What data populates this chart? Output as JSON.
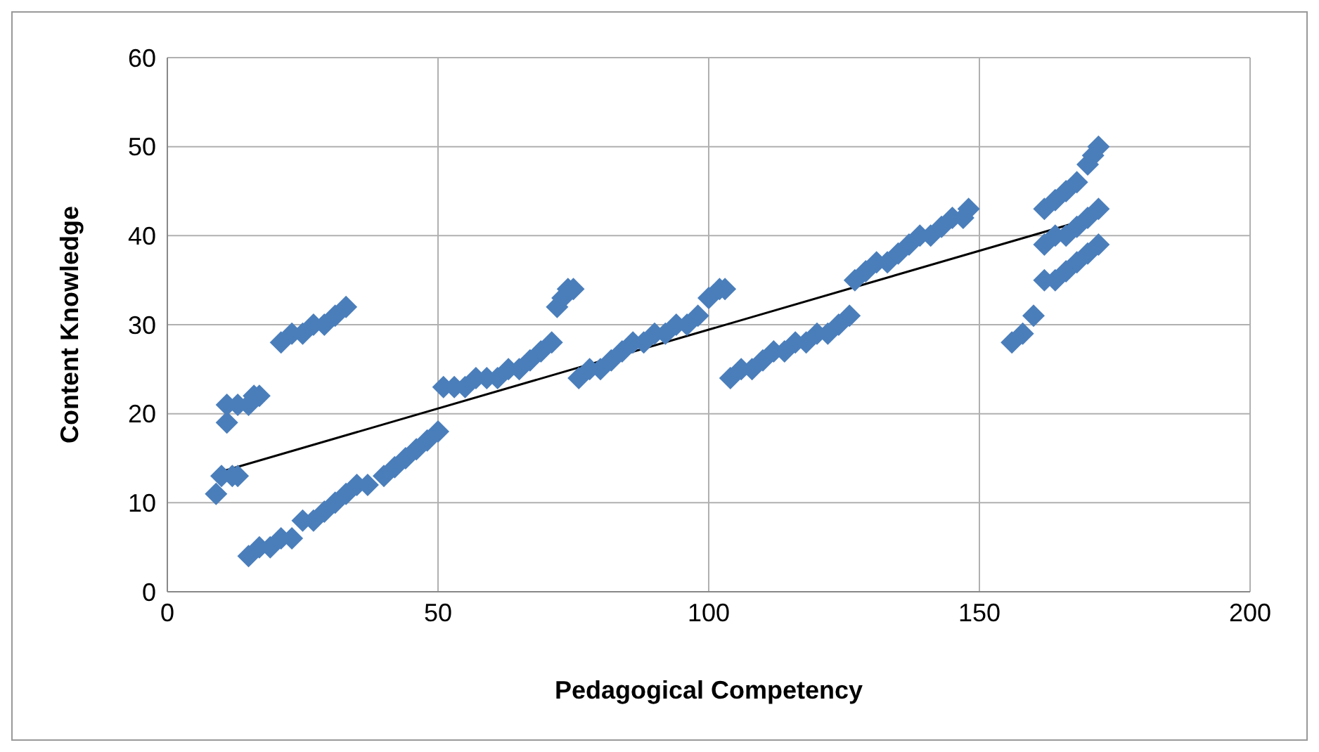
{
  "chart_data": {
    "type": "scatter",
    "xlabel": "Pedagogical Competency",
    "ylabel": "Content Knowledge",
    "xlim": [
      0,
      200
    ],
    "ylim": [
      0,
      60
    ],
    "xticks": [
      0,
      50,
      100,
      150,
      200
    ],
    "yticks": [
      0,
      10,
      20,
      30,
      40,
      50,
      60
    ],
    "grid": true,
    "legend": false,
    "marker": "diamond",
    "series": [
      {
        "color": "#4a7ebb",
        "x": [
          9,
          10,
          12,
          13,
          11,
          11,
          13,
          15,
          16,
          17,
          21,
          23,
          25,
          27,
          29,
          31,
          33,
          15,
          17,
          19,
          21,
          23,
          25,
          27,
          29,
          31,
          33,
          35,
          37,
          40,
          42,
          44,
          46,
          48,
          50,
          51,
          53,
          55,
          57,
          59,
          61,
          63,
          65,
          67,
          69,
          71,
          72,
          73,
          74,
          75,
          76,
          78,
          80,
          82,
          84,
          86,
          88,
          90,
          92,
          94,
          96,
          98,
          100,
          102,
          103,
          104,
          106,
          108,
          110,
          112,
          114,
          116,
          118,
          120,
          122,
          124,
          126,
          127,
          129,
          131,
          133,
          135,
          137,
          139,
          141,
          143,
          145,
          147,
          148,
          156,
          158,
          160,
          162,
          164,
          166,
          168,
          170,
          172,
          162,
          164,
          166,
          168,
          170,
          172,
          162,
          164,
          166,
          168,
          170,
          171,
          172
        ],
        "values": [
          11,
          13,
          13,
          13,
          19,
          21,
          21,
          21,
          22,
          22,
          28,
          29,
          29,
          30,
          30,
          31,
          32,
          4,
          5,
          5,
          6,
          6,
          8,
          8,
          9,
          10,
          11,
          12,
          12,
          13,
          14,
          15,
          16,
          17,
          18,
          23,
          23,
          23,
          24,
          24,
          24,
          25,
          25,
          26,
          27,
          28,
          32,
          33,
          34,
          34,
          24,
          25,
          25,
          26,
          27,
          28,
          28,
          29,
          29,
          30,
          30,
          31,
          33,
          34,
          34,
          24,
          25,
          25,
          26,
          27,
          27,
          28,
          28,
          29,
          29,
          30,
          31,
          35,
          36,
          37,
          37,
          38,
          39,
          40,
          40,
          41,
          42,
          42,
          43,
          28,
          29,
          31,
          35,
          35,
          36,
          37,
          38,
          39,
          39,
          40,
          40,
          41,
          42,
          43,
          43,
          44,
          45,
          46,
          48,
          49,
          50
        ]
      },
      {
        "type": "line",
        "color": "#000000",
        "marker": "none",
        "x": [
          10,
          172
        ],
        "values": [
          13.5,
          42.2
        ]
      }
    ]
  }
}
